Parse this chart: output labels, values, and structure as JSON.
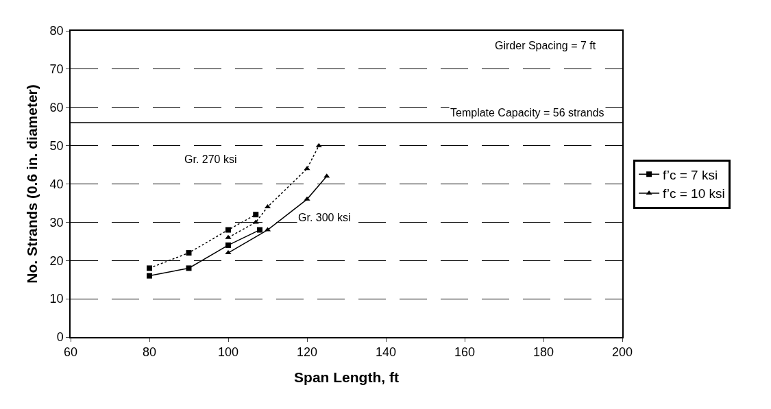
{
  "chart_data": {
    "type": "line",
    "xlabel": "Span Length, ft",
    "ylabel": "No. Strands (0.6 in. diameter)",
    "xlim": [
      60,
      200
    ],
    "xticks": [
      60,
      80,
      100,
      120,
      140,
      160,
      180,
      200
    ],
    "ylim": [
      0,
      80
    ],
    "yticks": [
      0,
      10,
      20,
      30,
      40,
      50,
      60,
      70,
      80
    ],
    "grid": "y",
    "legend": "right",
    "series": [
      {
        "name": "f’c = 7 ksi",
        "color": "#000000",
        "marker": "square",
        "line_style": "solid",
        "x": [
          80,
          90,
          100,
          108
        ],
        "values": [
          16,
          18,
          24,
          28
        ]
      },
      {
        "name": "f’c = 10 ksi",
        "color": "#000000",
        "marker": "triangle",
        "line_style": "solid",
        "x": [
          100,
          110,
          120,
          125
        ],
        "values": [
          22,
          28,
          36,
          42
        ]
      },
      {
        "color": "#000000",
        "marker": "square",
        "line_style": "dotted",
        "x": [
          80,
          90,
          100,
          107
        ],
        "values": [
          18,
          22,
          28,
          32
        ]
      },
      {
        "color": "#000000",
        "marker": "triangle",
        "line_style": "dotted",
        "x": [
          100,
          107,
          110,
          120,
          123
        ],
        "values": [
          26,
          30,
          34,
          44,
          50
        ]
      }
    ],
    "ref_lines": [
      {
        "axis": "y",
        "value": 56,
        "label": "Template Capacity = 56 strands",
        "color": "#000000",
        "line_style": "solid"
      }
    ],
    "annotations": [
      "Girder Spacing = 7 ft",
      "Gr. 270 ksi",
      "Gr. 300 ksi"
    ]
  }
}
